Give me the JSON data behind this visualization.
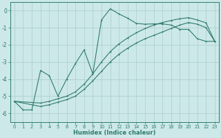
{
  "xlabel": "Humidex (Indice chaleur)",
  "bg_color": "#cce8e8",
  "grid_color": "#aacccc",
  "line_color": "#2d7a6e",
  "xlim": [
    -0.5,
    23.5
  ],
  "ylim": [
    -6.5,
    0.5
  ],
  "yticks": [
    0,
    -1,
    -2,
    -3,
    -4,
    -5,
    -6
  ],
  "xticks": [
    0,
    1,
    2,
    3,
    4,
    5,
    6,
    7,
    8,
    9,
    10,
    11,
    12,
    13,
    14,
    15,
    16,
    17,
    18,
    19,
    20,
    21,
    22,
    23
  ],
  "curve1_x": [
    0,
    1,
    2,
    3,
    4,
    5,
    6,
    7,
    8,
    9,
    10,
    11,
    12,
    13,
    14,
    15,
    16,
    17,
    18,
    19,
    20,
    21,
    22,
    23
  ],
  "curve1_y": [
    -5.3,
    -5.8,
    -5.8,
    -3.5,
    -3.8,
    -5.0,
    -4.0,
    -3.1,
    -2.3,
    -3.7,
    -0.55,
    0.1,
    -0.2,
    -0.45,
    -0.75,
    -0.8,
    -0.78,
    -0.78,
    -0.85,
    -1.1,
    -1.1,
    -1.65,
    -1.8,
    -1.8
  ],
  "curve2_x": [
    0,
    3,
    4,
    5,
    6,
    7,
    8,
    9,
    10,
    11,
    12,
    13,
    14,
    15,
    16,
    17,
    18,
    19,
    20,
    21,
    22,
    23
  ],
  "curve2_y": [
    -5.3,
    -5.4,
    -5.3,
    -5.15,
    -5.0,
    -4.75,
    -4.3,
    -3.7,
    -3.0,
    -2.4,
    -1.95,
    -1.6,
    -1.3,
    -1.05,
    -0.85,
    -0.7,
    -0.58,
    -0.48,
    -0.42,
    -0.55,
    -0.72,
    -1.8
  ],
  "curve3_x": [
    0,
    3,
    4,
    5,
    6,
    7,
    8,
    9,
    10,
    11,
    12,
    13,
    14,
    15,
    16,
    17,
    18,
    19,
    20,
    21,
    22,
    23
  ],
  "curve3_y": [
    -5.3,
    -5.6,
    -5.5,
    -5.35,
    -5.2,
    -5.0,
    -4.6,
    -4.1,
    -3.55,
    -3.0,
    -2.55,
    -2.2,
    -1.9,
    -1.65,
    -1.45,
    -1.25,
    -1.05,
    -0.85,
    -0.7,
    -0.8,
    -1.0,
    -1.8
  ]
}
